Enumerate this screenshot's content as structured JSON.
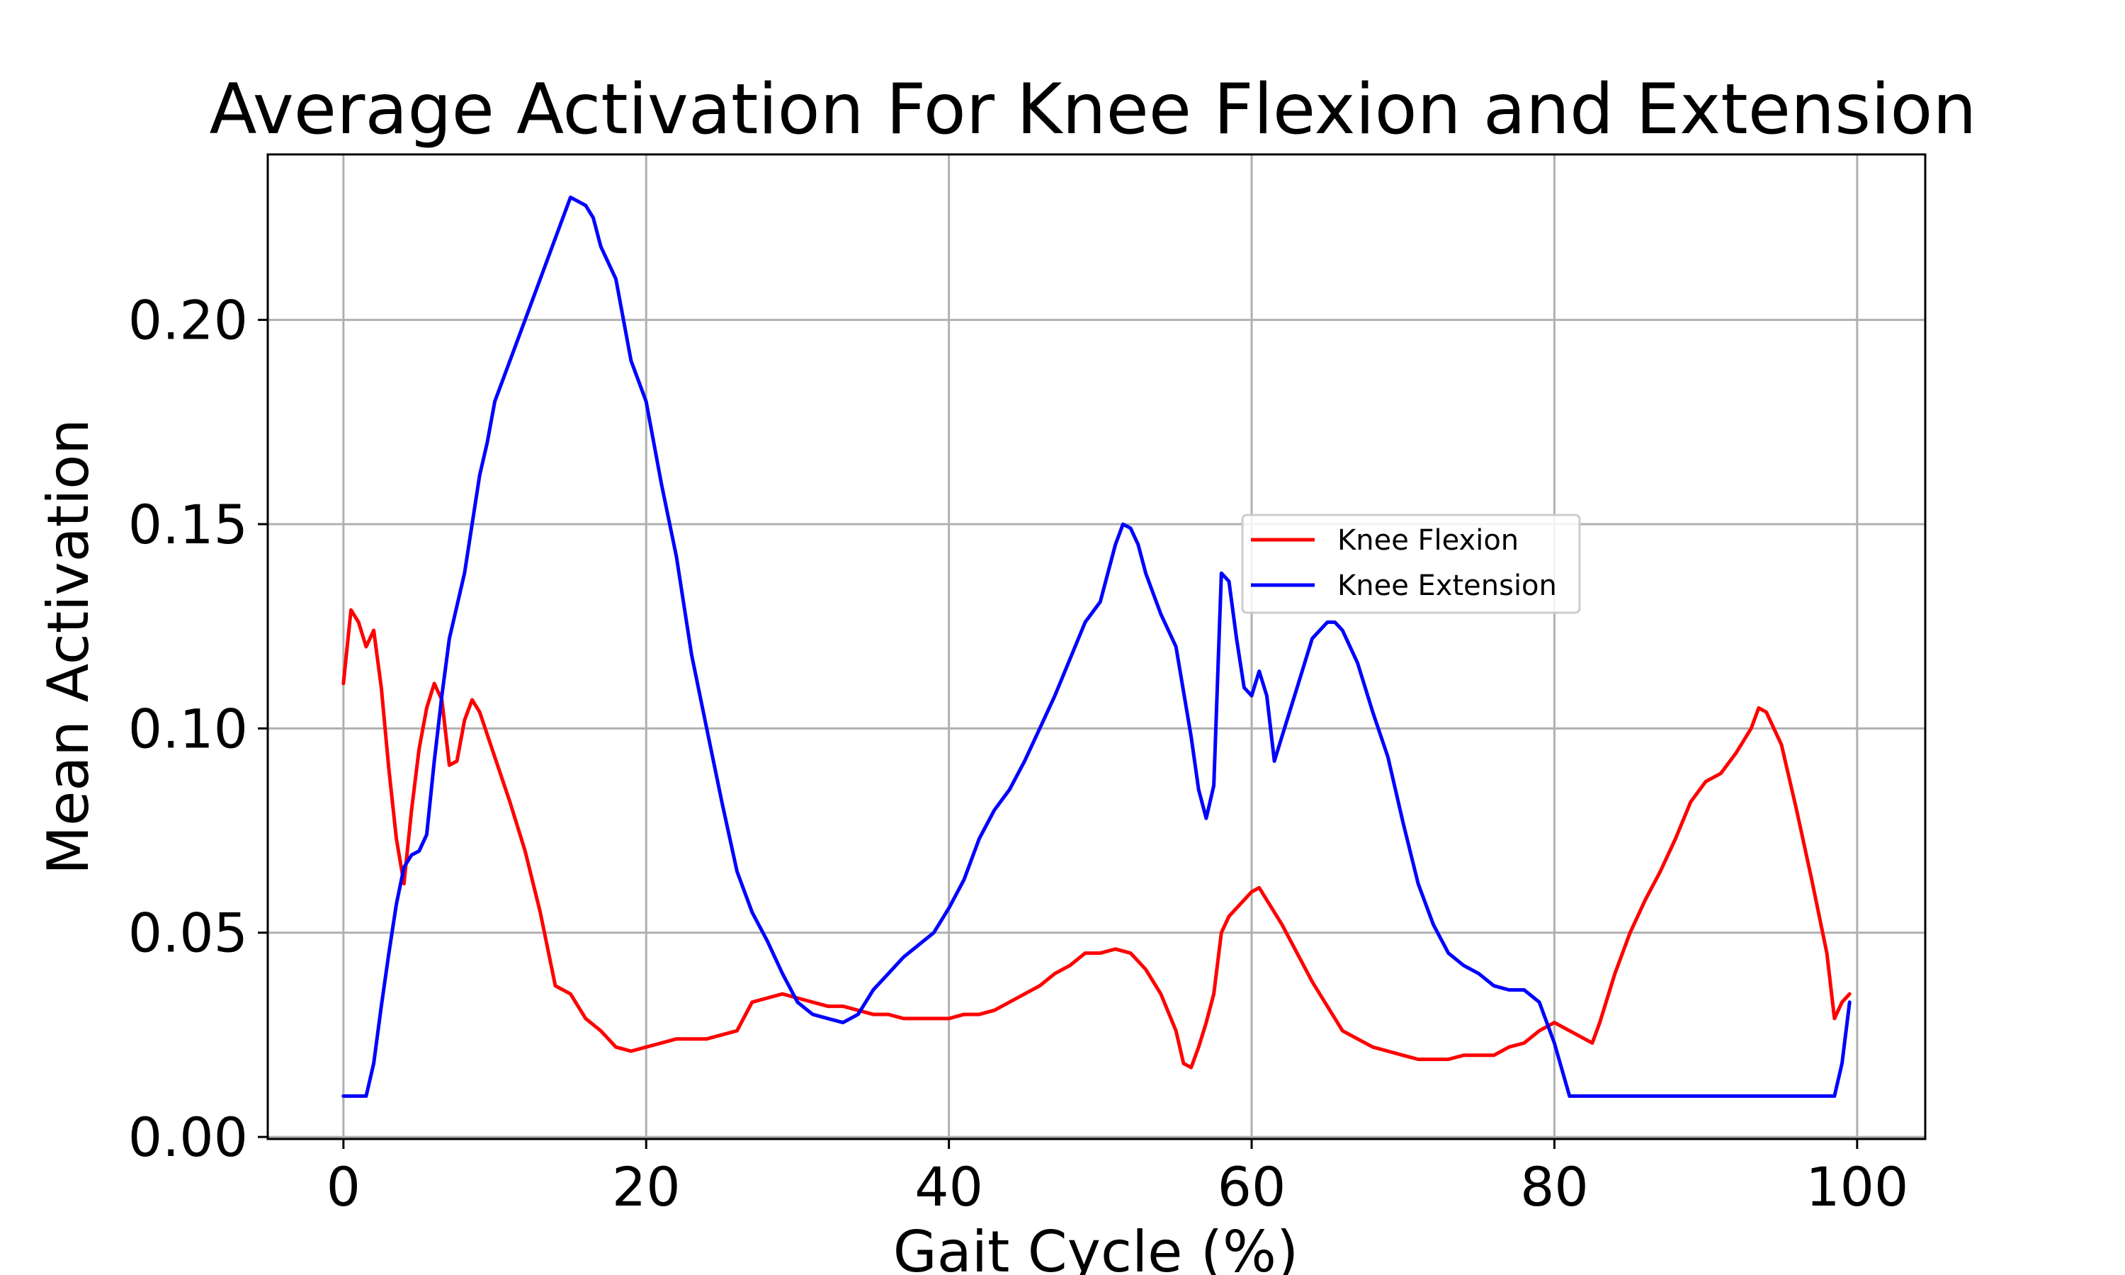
{
  "chart_data": {
    "type": "line",
    "title": "Average Activation For Knee Flexion and Extension",
    "xlabel": "Gait Cycle (%)",
    "ylabel": "Mean Activation",
    "xlim": [
      -5,
      104.5
    ],
    "ylim": [
      -0.0005,
      0.2405
    ],
    "xticks": [
      0,
      20,
      40,
      60,
      80,
      100
    ],
    "xtick_labels": [
      "0",
      "20",
      "40",
      "60",
      "80",
      "100"
    ],
    "yticks": [
      0.0,
      0.05,
      0.1,
      0.15,
      0.2
    ],
    "ytick_labels": [
      "0.00",
      "0.05",
      "0.10",
      "0.15",
      "0.20"
    ],
    "grid": true,
    "legend": "center-right",
    "series": [
      {
        "name": "Knee Flexion",
        "color": "#ff0000",
        "x": [
          0,
          0.5,
          1,
          1.5,
          2,
          2.5,
          3,
          3.5,
          4,
          4.5,
          5,
          5.5,
          6,
          6.5,
          7,
          7.5,
          8,
          8.5,
          9,
          10,
          11,
          12,
          13,
          14,
          15,
          16,
          17,
          18,
          19,
          20,
          21,
          22,
          23,
          24,
          25,
          26,
          27,
          28,
          29,
          30,
          31,
          32,
          33,
          34,
          35,
          36,
          37,
          38,
          39,
          40,
          41,
          42,
          43,
          44,
          45,
          46,
          47,
          48,
          49,
          50,
          51,
          52,
          53,
          54,
          55,
          55.5,
          56,
          56.5,
          57,
          57.5,
          58,
          58.5,
          59,
          60,
          60.5,
          61,
          62,
          63,
          64,
          65,
          66,
          67,
          68,
          69,
          70,
          71,
          72,
          73,
          74,
          75,
          76,
          77,
          78,
          79,
          80,
          81,
          82,
          82.5,
          83,
          84,
          85,
          86,
          87,
          88,
          89,
          90,
          91,
          92,
          93,
          93.5,
          94,
          94.5,
          95,
          96,
          97,
          98,
          98.5,
          99,
          99.5
        ],
        "values": [
          0.111,
          0.129,
          0.126,
          0.12,
          0.124,
          0.11,
          0.09,
          0.073,
          0.062,
          0.08,
          0.095,
          0.105,
          0.111,
          0.107,
          0.091,
          0.092,
          0.102,
          0.107,
          0.104,
          0.093,
          0.082,
          0.07,
          0.055,
          0.037,
          0.035,
          0.029,
          0.026,
          0.022,
          0.021,
          0.022,
          0.023,
          0.024,
          0.024,
          0.024,
          0.025,
          0.026,
          0.033,
          0.034,
          0.035,
          0.034,
          0.033,
          0.032,
          0.032,
          0.031,
          0.03,
          0.03,
          0.029,
          0.029,
          0.029,
          0.029,
          0.03,
          0.03,
          0.031,
          0.033,
          0.035,
          0.037,
          0.04,
          0.042,
          0.045,
          0.045,
          0.046,
          0.045,
          0.041,
          0.035,
          0.026,
          0.018,
          0.017,
          0.022,
          0.028,
          0.035,
          0.05,
          0.054,
          0.056,
          0.06,
          0.061,
          0.058,
          0.052,
          0.045,
          0.038,
          0.032,
          0.026,
          0.024,
          0.022,
          0.021,
          0.02,
          0.019,
          0.019,
          0.019,
          0.02,
          0.02,
          0.02,
          0.022,
          0.023,
          0.026,
          0.028,
          0.026,
          0.024,
          0.023,
          0.028,
          0.04,
          0.05,
          0.058,
          0.065,
          0.073,
          0.082,
          0.087,
          0.089,
          0.094,
          0.1,
          0.105,
          0.104,
          0.1,
          0.096,
          0.08,
          0.063,
          0.045,
          0.029,
          0.033,
          0.035
        ]
      },
      {
        "name": "Knee Extension",
        "color": "#0000ff",
        "x": [
          0,
          1,
          1.5,
          2,
          2.5,
          3,
          3.5,
          4,
          4.5,
          5,
          5.5,
          6,
          6.5,
          7,
          7.5,
          8,
          8.5,
          9,
          9.5,
          10,
          11,
          12,
          13,
          14,
          14.5,
          15,
          16,
          16.5,
          17,
          18,
          19,
          19.5,
          20,
          21,
          22,
          23,
          24,
          25,
          26,
          27,
          28,
          29,
          30,
          31,
          32,
          33,
          34,
          35,
          36,
          37,
          38,
          39,
          40,
          41,
          42,
          43,
          44,
          45,
          46,
          47,
          48,
          49,
          50,
          50.5,
          51,
          51.5,
          52,
          52.5,
          53,
          54,
          55,
          56,
          56.5,
          57,
          57.5,
          58,
          58.5,
          59,
          59.5,
          60,
          60.5,
          61,
          61.5,
          62,
          63,
          64,
          65,
          65.5,
          66,
          67,
          68,
          69,
          70,
          71,
          72,
          73,
          74,
          75,
          76,
          77,
          78,
          79,
          80,
          81,
          82,
          83,
          85,
          90,
          95,
          98,
          98.5,
          99,
          99.5
        ],
        "values": [
          0.01,
          0.01,
          0.01,
          0.018,
          0.032,
          0.045,
          0.057,
          0.066,
          0.069,
          0.07,
          0.074,
          0.092,
          0.108,
          0.122,
          0.13,
          0.138,
          0.15,
          0.162,
          0.17,
          0.18,
          0.19,
          0.2,
          0.21,
          0.22,
          0.225,
          0.23,
          0.228,
          0.225,
          0.218,
          0.21,
          0.19,
          0.185,
          0.18,
          0.16,
          0.142,
          0.118,
          0.1,
          0.082,
          0.065,
          0.055,
          0.048,
          0.04,
          0.033,
          0.03,
          0.029,
          0.028,
          0.03,
          0.036,
          0.04,
          0.044,
          0.047,
          0.05,
          0.056,
          0.063,
          0.073,
          0.08,
          0.085,
          0.092,
          0.1,
          0.108,
          0.117,
          0.126,
          0.131,
          0.138,
          0.145,
          0.15,
          0.149,
          0.145,
          0.138,
          0.128,
          0.12,
          0.098,
          0.085,
          0.078,
          0.086,
          0.138,
          0.136,
          0.122,
          0.11,
          0.108,
          0.114,
          0.108,
          0.092,
          0.098,
          0.11,
          0.122,
          0.126,
          0.126,
          0.124,
          0.116,
          0.104,
          0.093,
          0.077,
          0.062,
          0.052,
          0.045,
          0.042,
          0.04,
          0.037,
          0.036,
          0.036,
          0.033,
          0.023,
          0.01,
          0.01,
          0.01,
          0.01,
          0.01,
          0.01,
          0.01,
          0.01,
          0.018,
          0.033
        ]
      }
    ]
  }
}
